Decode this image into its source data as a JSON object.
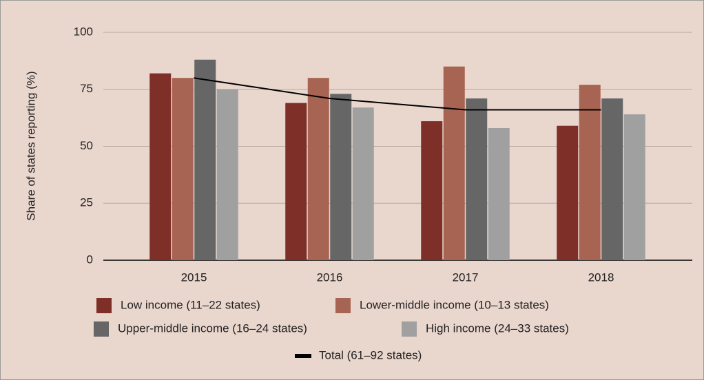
{
  "chart_data": {
    "type": "bar",
    "y_label": "Share of states reporting (%)",
    "categories": [
      "2015",
      "2016",
      "2017",
      "2018"
    ],
    "series": [
      {
        "name": "Low income (11–22 states)",
        "color": "#7e2f28",
        "values": [
          82,
          69,
          61,
          59
        ]
      },
      {
        "name": "Lower-middle income (10–13 states)",
        "color": "#a86452",
        "values": [
          80,
          80,
          85,
          77
        ]
      },
      {
        "name": "Upper-middle income (16–24 states)",
        "color": "#666666",
        "values": [
          88,
          73,
          71,
          71
        ]
      },
      {
        "name": "High income (24–33 states)",
        "color": "#a0a0a0",
        "values": [
          75,
          67,
          58,
          64
        ]
      },
      {
        "name": "Total (61–92 states)",
        "color": "#000000",
        "type": "line",
        "values": [
          80,
          71,
          66,
          66
        ]
      }
    ],
    "ylim": [
      0,
      100
    ],
    "yticks": [
      0,
      25,
      50,
      75,
      100
    ],
    "grid": true
  }
}
